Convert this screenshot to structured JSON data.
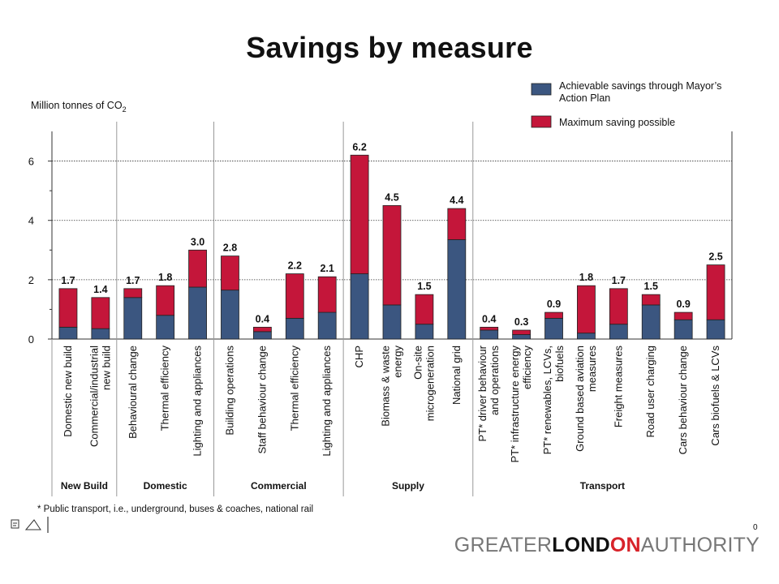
{
  "title": "Savings by measure",
  "footnote": "* Public transport, i.e., underground, buses & coaches, national rail",
  "slide_number": "0",
  "logo": {
    "part1": "GREATER",
    "part2": "LONDON",
    "part2_red": "ON",
    "part3": "AUTHORITY"
  },
  "colors": {
    "achievable": "#3b5680",
    "maximum": "#c4163a",
    "grid": "#333333",
    "logo_red": "#d8232a"
  },
  "chart_data": {
    "type": "bar",
    "stacked": true,
    "title": "Savings by measure",
    "ylabel_main": "Million tonnes of CO",
    "ylabel_sub": "2",
    "ylim": [
      0,
      7
    ],
    "yticks": [
      0,
      2,
      4,
      6
    ],
    "grid": true,
    "legend_position": "top-right",
    "categories": [
      "Domestic new build",
      "Commercial/industrial new build",
      "Behavioural change",
      "Thermal efficiency",
      "Lighting and appliances",
      "Building operations",
      "Staff behaviour change",
      "Thermal efficiency",
      "Lighting and appliances",
      "CHP",
      "Biomass & waste energy",
      "On-site microgeneration",
      "National grid",
      "PT* driver behaviour and operations",
      "PT* infrastructure energy efficiency",
      "PT* renewables, LCVs, biofuels",
      "Ground based aviation measures",
      "Freight measures",
      "Road user charging",
      "Cars behaviour change",
      "Cars biofuels & LCVs"
    ],
    "category_lines": [
      [
        "Domestic new build"
      ],
      [
        "Commercial/industrial",
        "new build"
      ],
      [
        "Behavioural change"
      ],
      [
        "Thermal efficiency"
      ],
      [
        "Lighting and appliances"
      ],
      [
        "Building operations"
      ],
      [
        "Staff behaviour change"
      ],
      [
        "Thermal efficiency"
      ],
      [
        "Lighting and appliances"
      ],
      [
        "CHP"
      ],
      [
        "Biomass & waste",
        "energy"
      ],
      [
        "On-site",
        "microgeneration"
      ],
      [
        "National grid"
      ],
      [
        "PT* driver behaviour",
        "and operations"
      ],
      [
        "PT* infrastructure energy",
        "efficiency"
      ],
      [
        "PT* renewables, LCVs,",
        "biofuels"
      ],
      [
        "Ground based aviation",
        "measures"
      ],
      [
        "Freight measures"
      ],
      [
        "Road user charging"
      ],
      [
        "Cars behaviour change"
      ],
      [
        "Cars biofuels & LCVs"
      ]
    ],
    "series": [
      {
        "name": "Achievable savings through Mayor's Action Plan",
        "legend_lines": [
          "Achievable savings through Mayor’s",
          "Action Plan"
        ],
        "values": [
          0.4,
          0.35,
          1.4,
          0.8,
          1.75,
          1.65,
          0.25,
          0.7,
          0.9,
          2.2,
          1.15,
          0.5,
          3.35,
          0.3,
          0.15,
          0.7,
          0.2,
          0.5,
          1.15,
          0.65,
          0.65
        ]
      },
      {
        "name": "Maximum saving possible",
        "legend_lines": [
          "Maximum saving possible"
        ],
        "values": [
          1.3,
          1.05,
          0.3,
          1.0,
          1.25,
          1.15,
          0.15,
          1.5,
          1.2,
          4.0,
          3.35,
          1.0,
          1.05,
          0.1,
          0.15,
          0.2,
          1.6,
          1.2,
          0.35,
          0.25,
          1.85
        ]
      }
    ],
    "totals": [
      1.7,
      1.4,
      1.7,
      1.8,
      3.0,
      2.8,
      0.4,
      2.2,
      2.1,
      6.2,
      4.5,
      1.5,
      4.4,
      0.4,
      0.3,
      0.9,
      1.8,
      1.7,
      1.5,
      0.9,
      2.5
    ],
    "total_labels": [
      "1.7",
      "1.4",
      "1.7",
      "1.8",
      "3.0",
      "2.8",
      "0.4",
      "2.2",
      "2.1",
      "6.2",
      "4.5",
      "1.5",
      "4.4",
      "0.4",
      "0.3",
      "0.9",
      "1.8",
      "1.7",
      "1.5",
      "0.9",
      "2.5"
    ],
    "groups": [
      {
        "name": "New Build",
        "start": 0,
        "end": 1
      },
      {
        "name": "Domestic",
        "start": 2,
        "end": 4
      },
      {
        "name": "Commercial",
        "start": 5,
        "end": 8
      },
      {
        "name": "Supply",
        "start": 9,
        "end": 12
      },
      {
        "name": "Transport",
        "start": 13,
        "end": 20
      }
    ]
  }
}
